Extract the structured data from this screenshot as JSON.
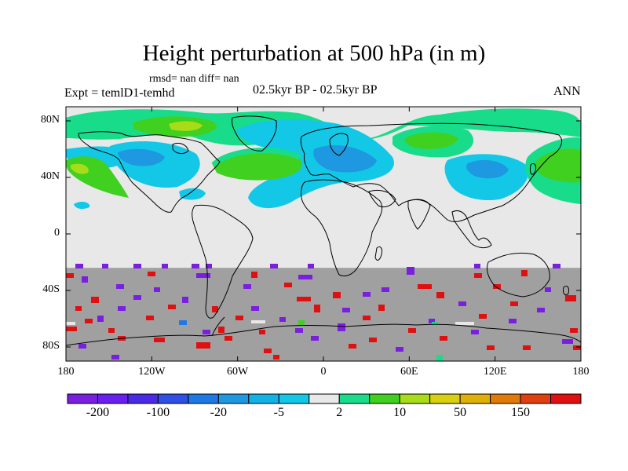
{
  "title": "Height perturbation at 500 hPa (in m)",
  "stats_line": "rmsd= nan diff= nan",
  "experiment_line": "Expt = temlD1-temhd",
  "period_line": "02.5kyr BP - 02.5kyr BP",
  "season": "ANN",
  "lat_ticks": [
    {
      "lat": 80,
      "label": "80N"
    },
    {
      "lat": 40,
      "label": "40N"
    },
    {
      "lat": 0,
      "label": "0"
    },
    {
      "lat": -40,
      "label": "40S"
    },
    {
      "lat": -80,
      "label": "80S"
    }
  ],
  "lon_ticks": [
    {
      "lon": -180,
      "label": "180"
    },
    {
      "lon": -120,
      "label": "120W"
    },
    {
      "lon": -60,
      "label": "60W"
    },
    {
      "lon": 0,
      "label": "0"
    },
    {
      "lon": 60,
      "label": "60E"
    },
    {
      "lon": 120,
      "label": "120E"
    },
    {
      "lon": 180,
      "label": "180"
    }
  ],
  "colorbar": {
    "colors": [
      "#7a1fe0",
      "#6a1ff0",
      "#4a2ae6",
      "#2e50e6",
      "#1e78e6",
      "#1e98e0",
      "#12b2e6",
      "#12c8e6",
      "#e8e8e8",
      "#18dc8a",
      "#40d020",
      "#a8dc18",
      "#d8d010",
      "#e0b008",
      "#e07a08",
      "#e04010",
      "#e01010"
    ],
    "tick_labels": [
      "-200",
      "-100",
      "-20",
      "-5",
      "2",
      "10",
      "50",
      "150"
    ]
  },
  "missing_region": {
    "lat_from": -24,
    "lat_to": -90,
    "color": "#a0a0a0"
  }
}
